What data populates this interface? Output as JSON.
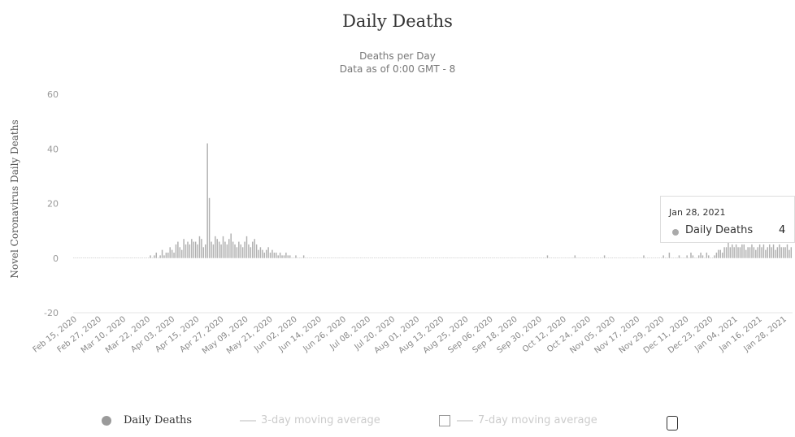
{
  "chart_data": {
    "type": "bar",
    "title": "Daily Deaths",
    "subtitle_line1": "Deaths per Day",
    "subtitle_line2": "Data as of 0:00 GMT - 8",
    "ylabel": "Novel Coronavirus Daily Deaths",
    "xlabel": "",
    "ylim": [
      -20,
      60
    ],
    "yticks": [
      60,
      40,
      20,
      0,
      -20
    ],
    "grid": false,
    "x_start": "Feb 15, 2020",
    "x_end": "Jan 28, 2021",
    "xtick_labels": [
      "Feb 15, 2020",
      "Feb 27, 2020",
      "Mar 10, 2020",
      "Mar 22, 2020",
      "Apr 03, 2020",
      "Apr 15, 2020",
      "Apr 27, 2020",
      "May 09, 2020",
      "May 21, 2020",
      "Jun 02, 2020",
      "Jun 14, 2020",
      "Jun 26, 2020",
      "Jul 08, 2020",
      "Jul 20, 2020",
      "Aug 01, 2020",
      "Aug 13, 2020",
      "Aug 25, 2020",
      "Sep 06, 2020",
      "Sep 18, 2020",
      "Sep 30, 2020",
      "Oct 12, 2020",
      "Oct 24, 2020",
      "Nov 05, 2020",
      "Nov 17, 2020",
      "Nov 29, 2020",
      "Dec 11, 2020",
      "Dec 23, 2020",
      "Jan 04, 2021",
      "Jan 16, 2021",
      "Jan 28, 2021"
    ],
    "series": [
      {
        "name": "Daily Deaths",
        "color": "#b0b0b0",
        "values": [
          0,
          0,
          0,
          0,
          0,
          0,
          0,
          0,
          0,
          0,
          0,
          0,
          0,
          0,
          0,
          0,
          0,
          0,
          0,
          0,
          0,
          0,
          0,
          0,
          0,
          0,
          0,
          0,
          0,
          0,
          0,
          0,
          0,
          0,
          0,
          0,
          0,
          0,
          0,
          1,
          0,
          1,
          2,
          0,
          1,
          3,
          1,
          2,
          2,
          4,
          3,
          2,
          5,
          6,
          4,
          3,
          7,
          5,
          6,
          5,
          7,
          6,
          6,
          5,
          8,
          7,
          4,
          5,
          42,
          22,
          6,
          5,
          8,
          7,
          6,
          5,
          8,
          6,
          5,
          7,
          9,
          6,
          5,
          4,
          6,
          5,
          4,
          6,
          8,
          5,
          4,
          6,
          7,
          5,
          3,
          4,
          3,
          2,
          3,
          4,
          2,
          3,
          2,
          2,
          1,
          2,
          1,
          1,
          2,
          1,
          1,
          0,
          0,
          1,
          0,
          0,
          0,
          1,
          0,
          0,
          0,
          0,
          0,
          0,
          0,
          0,
          0,
          0,
          0,
          0,
          0,
          0,
          0,
          0,
          0,
          0,
          0,
          0,
          0,
          0,
          0,
          0,
          0,
          0,
          0,
          0,
          0,
          0,
          0,
          0,
          0,
          0,
          0,
          0,
          0,
          0,
          0,
          0,
          0,
          0,
          0,
          0,
          0,
          0,
          0,
          0,
          0,
          0,
          0,
          0,
          0,
          0,
          0,
          0,
          0,
          0,
          0,
          0,
          0,
          0,
          0,
          0,
          0,
          0,
          0,
          0,
          0,
          0,
          0,
          0,
          0,
          0,
          0,
          0,
          0,
          0,
          0,
          0,
          0,
          0,
          0,
          0,
          0,
          0,
          0,
          0,
          0,
          0,
          0,
          0,
          0,
          0,
          0,
          0,
          0,
          0,
          0,
          0,
          0,
          0,
          0,
          0,
          0,
          0,
          0,
          0,
          0,
          0,
          0,
          0,
          0,
          0,
          0,
          0,
          0,
          0,
          0,
          0,
          0,
          0,
          0,
          1,
          0,
          0,
          0,
          0,
          0,
          0,
          0,
          0,
          0,
          0,
          0,
          0,
          0,
          1,
          0,
          0,
          0,
          0,
          0,
          0,
          0,
          0,
          0,
          0,
          0,
          0,
          0,
          0,
          1,
          0,
          0,
          0,
          0,
          0,
          0,
          0,
          0,
          0,
          0,
          0,
          0,
          0,
          0,
          0,
          0,
          0,
          0,
          0,
          1,
          0,
          0,
          0,
          0,
          0,
          0,
          0,
          0,
          0,
          1,
          0,
          0,
          2,
          0,
          0,
          0,
          0,
          1,
          0,
          0,
          0,
          1,
          0,
          2,
          1,
          0,
          0,
          1,
          2,
          1,
          0,
          2,
          1,
          0,
          0,
          1,
          2,
          3,
          3,
          2,
          4,
          4,
          6,
          4,
          5,
          4,
          5,
          4,
          4,
          5,
          5,
          3,
          4,
          4,
          5,
          4,
          3,
          4,
          5,
          4,
          5,
          3,
          4,
          5,
          4,
          5,
          3,
          4,
          5,
          4,
          4,
          4,
          5,
          3,
          4
        ]
      }
    ],
    "tooltip": {
      "date": "Jan 28, 2021",
      "series": "Daily Deaths",
      "value": "4"
    },
    "legend": {
      "position": "bottom",
      "items": [
        {
          "label": "Daily Deaths",
          "active": true,
          "color": "#9a9a9a"
        },
        {
          "label": "3-day moving average",
          "active": false
        },
        {
          "label": "7-day moving average",
          "active": false
        }
      ]
    }
  }
}
